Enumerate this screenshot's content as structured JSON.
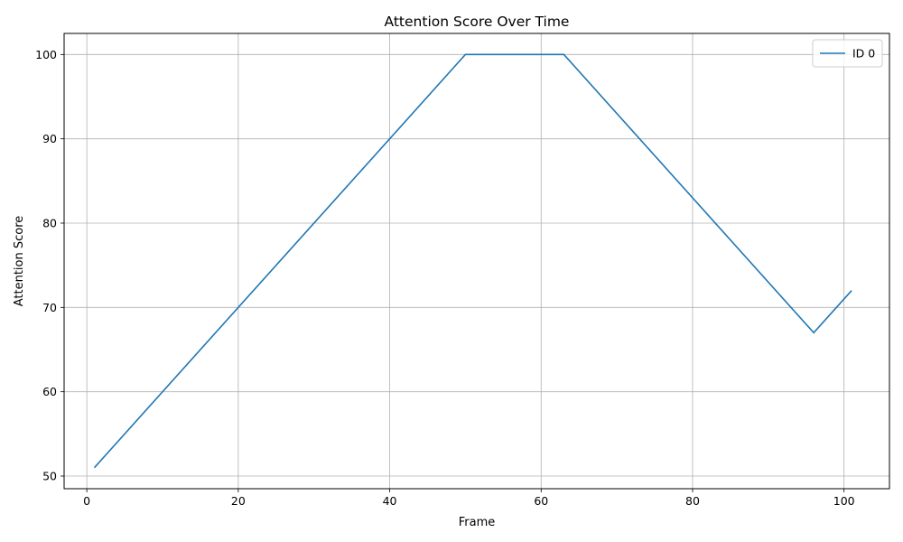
{
  "chart_data": {
    "type": "line",
    "title": "Attention Score Over Time",
    "xlabel": "Frame",
    "ylabel": "Attention Score",
    "xlim": [
      -3.0,
      106.0
    ],
    "ylim": [
      48.5,
      102.5
    ],
    "xticks": [
      0,
      20,
      40,
      60,
      80,
      100
    ],
    "yticks": [
      50,
      60,
      70,
      80,
      90,
      100
    ],
    "grid": true,
    "legend": {
      "position": "upper-right",
      "entries": [
        "ID 0"
      ]
    },
    "series": [
      {
        "name": "ID 0",
        "color": "#1f77b4",
        "x": [
          1,
          50,
          63,
          96,
          101
        ],
        "y": [
          51,
          100,
          100,
          67,
          72
        ]
      }
    ]
  }
}
